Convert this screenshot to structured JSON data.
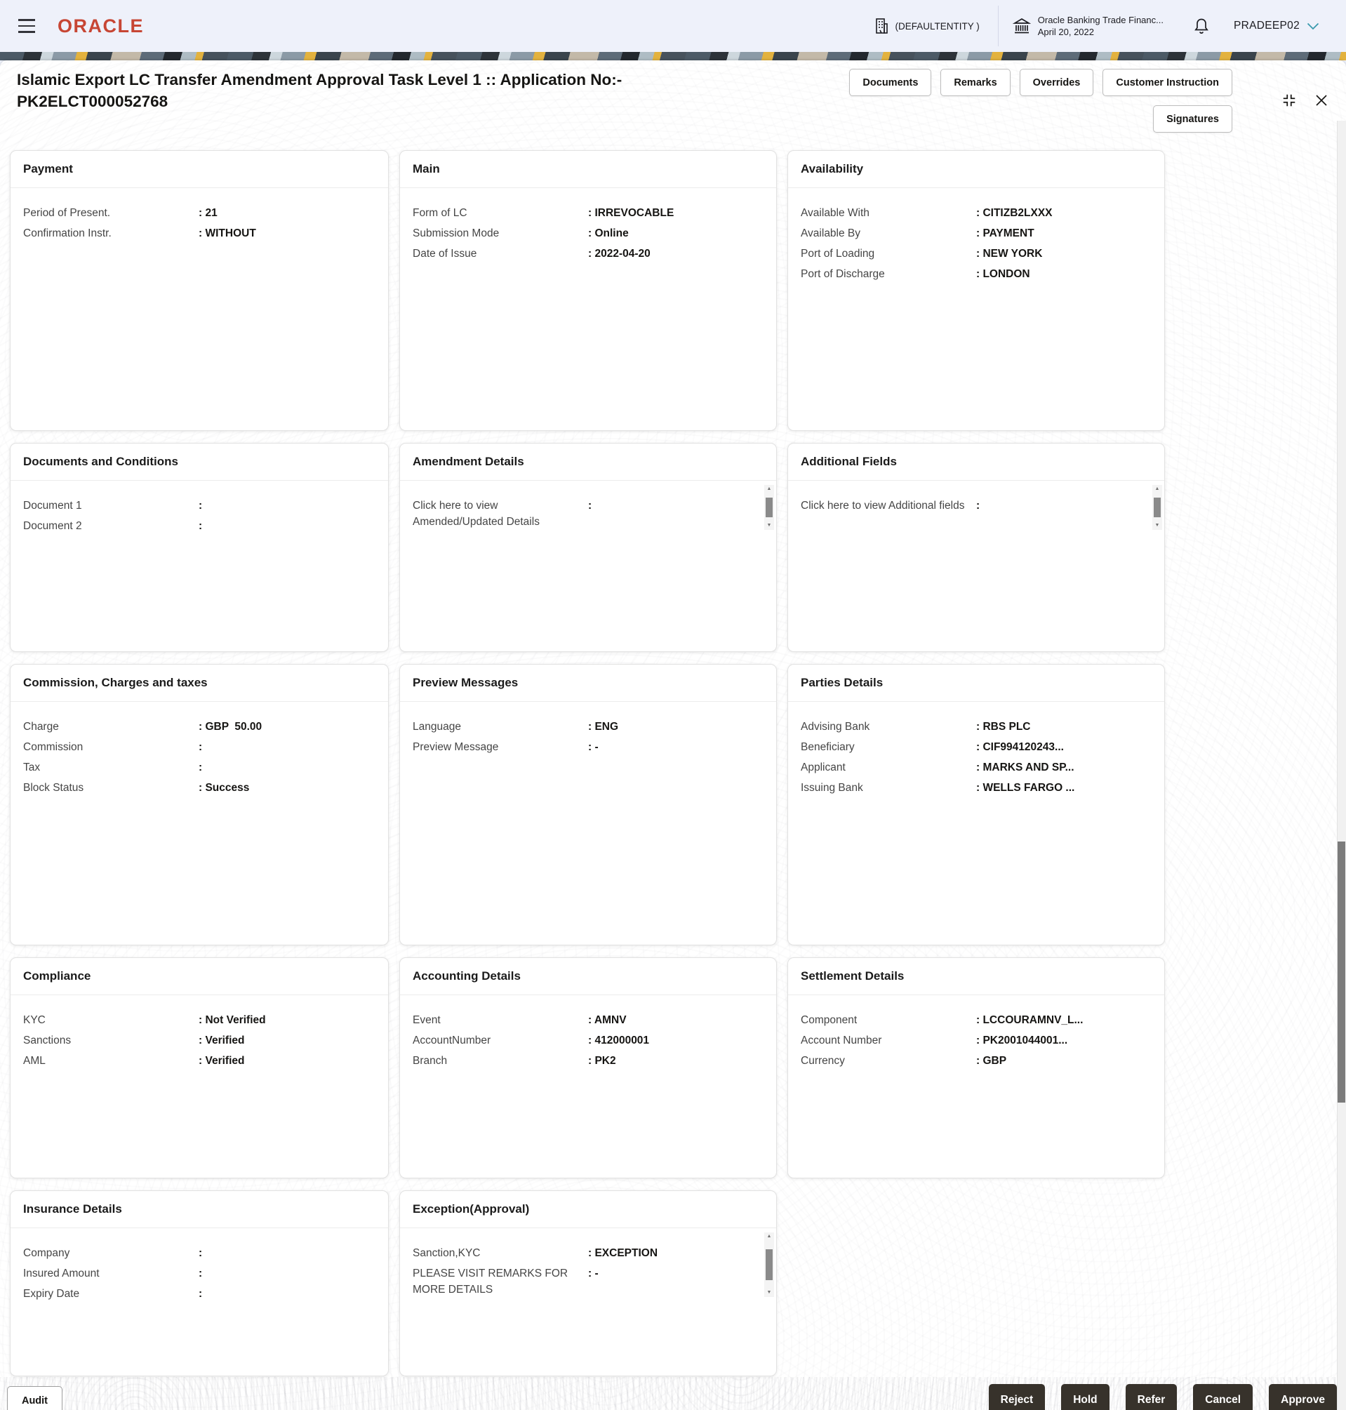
{
  "topbar": {
    "logo_text": "ORACLE",
    "entity_label": "(DEFAULTENTITY )",
    "app_line1": "Oracle Banking Trade Financ...",
    "app_line2": "April 20, 2022",
    "username": "PRADEEP02"
  },
  "header": {
    "title_line1": "Islamic Export LC Transfer Amendment Approval Task Level 1 :: Application No:-",
    "title_line2": "PK2ELCT000052768",
    "action_buttons": [
      "Documents",
      "Remarks",
      "Overrides",
      "Customer Instruction"
    ],
    "signatures_button": "Signatures"
  },
  "cards": [
    {
      "title": "Payment",
      "fields": [
        {
          "label": "Period of Present.",
          "value": "21"
        },
        {
          "label": "Confirmation Instr.",
          "value": "WITHOUT"
        }
      ]
    },
    {
      "title": "Main",
      "fields": [
        {
          "label": "Form of LC",
          "value": "IRREVOCABLE"
        },
        {
          "label": "Submission Mode",
          "value": "Online"
        },
        {
          "label": "Date of Issue",
          "value": "2022-04-20"
        }
      ]
    },
    {
      "title": "Availability",
      "fields": [
        {
          "label": "Available With",
          "value": "CITIZB2LXXX"
        },
        {
          "label": "Available By",
          "value": "PAYMENT"
        },
        {
          "label": "Port of Loading",
          "value": "NEW YORK"
        },
        {
          "label": "Port of Discharge",
          "value": "LONDON"
        }
      ]
    },
    {
      "title": "Documents and Conditions",
      "fields": [
        {
          "label": "Document 1",
          "value": ""
        },
        {
          "label": "Document 2",
          "value": ""
        }
      ]
    },
    {
      "title": "Amendment Details",
      "scrollbar": true,
      "fields": [
        {
          "label": "Click here to view Amended/Updated Details",
          "value": ""
        }
      ]
    },
    {
      "title": "Additional Fields",
      "scrollbar": true,
      "fields": [
        {
          "label": "Click here to view Additional fields",
          "value": ""
        }
      ]
    },
    {
      "title": "Commission, Charges and taxes",
      "fields": [
        {
          "label": "Charge",
          "value": "GBP  50.00"
        },
        {
          "label": "Commission",
          "value": ""
        },
        {
          "label": "Tax",
          "value": ""
        },
        {
          "label": "Block Status",
          "value": "Success"
        }
      ]
    },
    {
      "title": "Preview Messages",
      "fields": [
        {
          "label": "Language",
          "value": "ENG"
        },
        {
          "label": "Preview Message",
          "value": "-"
        }
      ]
    },
    {
      "title": "Parties Details",
      "fields": [
        {
          "label": "Advising Bank",
          "value": "RBS PLC"
        },
        {
          "label": "Beneficiary",
          "value": "CIF994120243..."
        },
        {
          "label": "Applicant",
          "value": "MARKS AND SP..."
        },
        {
          "label": "Issuing Bank",
          "value": "WELLS FARGO ..."
        }
      ]
    },
    {
      "title": "Compliance",
      "fields": [
        {
          "label": "KYC",
          "value": "Not Verified"
        },
        {
          "label": "Sanctions",
          "value": "Verified"
        },
        {
          "label": "AML",
          "value": "Verified"
        }
      ]
    },
    {
      "title": "Accounting Details",
      "fields": [
        {
          "label": "Event",
          "value": "AMNV"
        },
        {
          "label": "AccountNumber",
          "value": "412000001"
        },
        {
          "label": "Branch",
          "value": "PK2"
        }
      ]
    },
    {
      "title": "Settlement Details",
      "fields": [
        {
          "label": "Component",
          "value": "LCCOURAMNV_L..."
        },
        {
          "label": "Account Number",
          "value": "PK2001044001..."
        },
        {
          "label": "Currency",
          "value": "GBP"
        }
      ]
    },
    {
      "title": "Insurance Details",
      "fields": [
        {
          "label": "Company",
          "value": ""
        },
        {
          "label": "Insured Amount",
          "value": ""
        },
        {
          "label": "Expiry Date",
          "value": ""
        }
      ]
    },
    {
      "title": "Exception(Approval)",
      "scrollbar": true,
      "scrollbar_tall": true,
      "fields": [
        {
          "label": "Sanction,KYC",
          "value": "EXCEPTION"
        },
        {
          "label": "PLEASE VISIT REMARKS FOR MORE DETAILS",
          "value": "-"
        }
      ]
    }
  ],
  "footer": {
    "audit_button": "Audit",
    "actions": [
      "Reject",
      "Hold",
      "Refer",
      "Cancel",
      "Approve"
    ]
  },
  "icons": {
    "menu-icon": "≡",
    "building-icon": "🏢",
    "bank-icon": "🏛",
    "bell-icon": "🔔",
    "chevron-down-icon": "⌄",
    "expand-icon": "⛶",
    "close-icon": "✕",
    "scroll-up-icon": "▲",
    "scroll-down-icon": "▼"
  },
  "colors": {
    "oracle_red": "#c74634",
    "accent_teal": "#3a9aad",
    "topbar_bg": "#eef1fa",
    "action_button_bg": "#37322b",
    "strip_yellow": "#e3b23e",
    "card_border": "#e2e2e2"
  }
}
